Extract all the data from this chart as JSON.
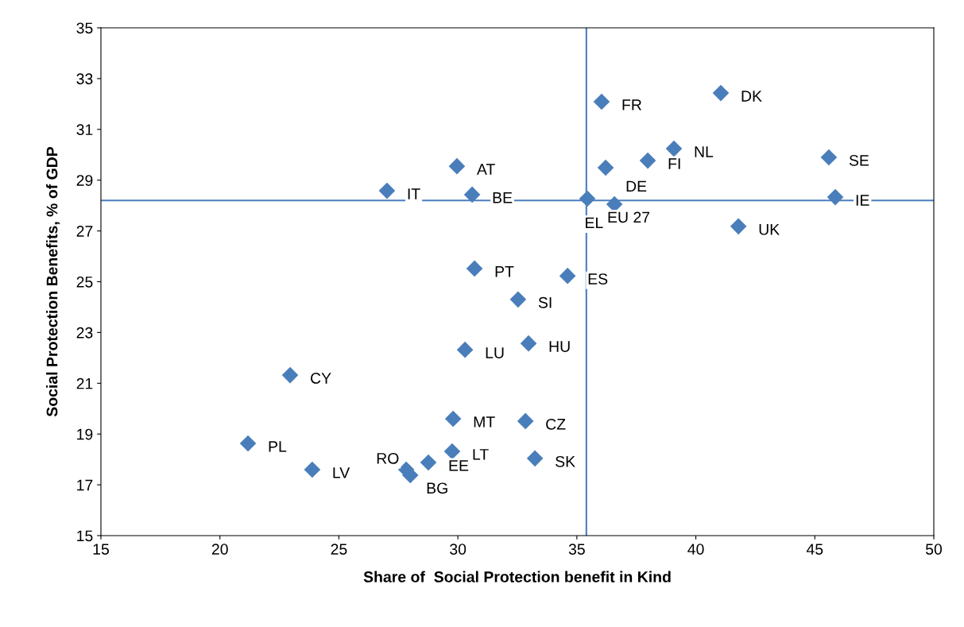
{
  "chart_data": {
    "type": "scatter",
    "xlabel": "Share of  Social Protection benefit in Kind",
    "ylabel": "Social Protection Benefits, % of GDP",
    "x": [
      36.04,
      41.05,
      39.08,
      45.59,
      37.98,
      36.21,
      29.96,
      27.02,
      30.6,
      35.44,
      36.58,
      45.86,
      41.79,
      30.7,
      34.61,
      32.53,
      32.97,
      30.3,
      22.95,
      29.8,
      32.84,
      21.18,
      29.76,
      33.24,
      23.88,
      28.76,
      27.83,
      28.0
    ],
    "series": [
      {
        "color": "#4a7ebb",
        "values": [
          32.09,
          32.43,
          30.24,
          29.9,
          29.77,
          29.49,
          29.55,
          28.58,
          28.43,
          28.27,
          28.05,
          28.33,
          27.18,
          25.52,
          25.23,
          24.3,
          22.57,
          22.32,
          21.32,
          19.6,
          19.51,
          18.63,
          18.32,
          18.04,
          17.6,
          17.88,
          17.6,
          17.38
        ]
      }
    ],
    "annotations": [
      {
        "text": "FR",
        "x": 36.04,
        "y": 32.09
      },
      {
        "text": "DK",
        "x": 41.05,
        "y": 32.43
      },
      {
        "text": "NL",
        "x": 39.08,
        "y": 30.24
      },
      {
        "text": "SE",
        "x": 45.59,
        "y": 29.9
      },
      {
        "text": "FI",
        "x": 37.98,
        "y": 29.77
      },
      {
        "text": "DE",
        "x": 36.21,
        "y": 29.49
      },
      {
        "text": "AT",
        "x": 29.96,
        "y": 29.55
      },
      {
        "text": "IT",
        "x": 27.02,
        "y": 28.58
      },
      {
        "text": "BE",
        "x": 30.6,
        "y": 28.43
      },
      {
        "text": "EU 27",
        "x": 35.44,
        "y": 28.27
      },
      {
        "text": "EL",
        "x": 36.58,
        "y": 28.05
      },
      {
        "text": "IE",
        "x": 45.86,
        "y": 28.33
      },
      {
        "text": "UK",
        "x": 41.79,
        "y": 27.18
      },
      {
        "text": "PT",
        "x": 30.7,
        "y": 25.52
      },
      {
        "text": "ES",
        "x": 34.61,
        "y": 25.23
      },
      {
        "text": "SI",
        "x": 32.53,
        "y": 24.3
      },
      {
        "text": "HU",
        "x": 32.97,
        "y": 22.57
      },
      {
        "text": "LU",
        "x": 30.3,
        "y": 22.32
      },
      {
        "text": "CY",
        "x": 22.95,
        "y": 21.32
      },
      {
        "text": "MT",
        "x": 29.8,
        "y": 19.6
      },
      {
        "text": "CZ",
        "x": 32.84,
        "y": 19.51
      },
      {
        "text": "PL",
        "x": 21.18,
        "y": 18.63
      },
      {
        "text": "LT",
        "x": 29.76,
        "y": 18.32
      },
      {
        "text": "SK",
        "x": 33.24,
        "y": 18.04
      },
      {
        "text": "LV",
        "x": 23.88,
        "y": 17.6
      },
      {
        "text": "EE",
        "x": 28.76,
        "y": 17.88
      },
      {
        "text": "BG",
        "x": 27.83,
        "y": 17.6
      },
      {
        "text": "RO",
        "x": 28.0,
        "y": 17.38
      }
    ],
    "ref_lines": [
      {
        "axis": "y",
        "value": 28.2,
        "color": "#4a7ebb"
      },
      {
        "axis": "x",
        "value": 35.4,
        "color": "#4a7ebb"
      }
    ],
    "xlim": [
      15,
      50
    ],
    "xticks": [
      15,
      20,
      25,
      30,
      35,
      40,
      45,
      50
    ],
    "ylim": [
      15,
      35
    ],
    "yticks": [
      15,
      17,
      19,
      21,
      23,
      25,
      27,
      29,
      31,
      33,
      35
    ],
    "marker": "diamond",
    "grid": false,
    "legend": false
  }
}
